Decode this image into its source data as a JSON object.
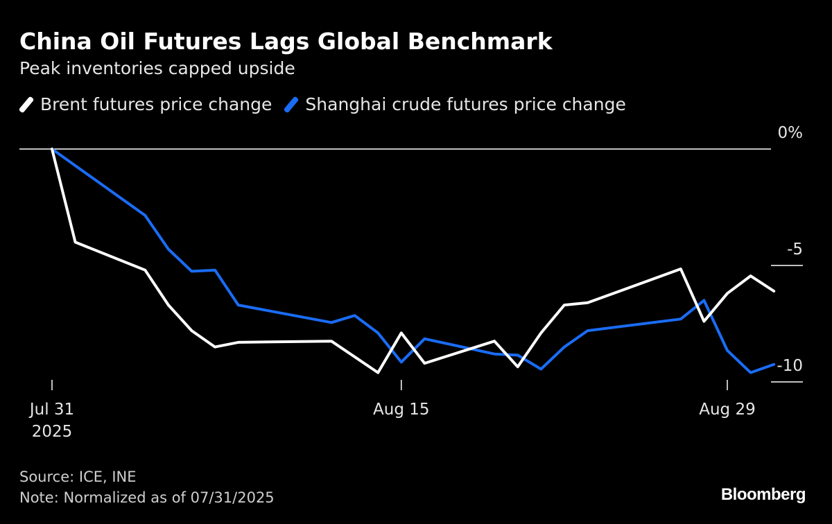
{
  "title": "China Oil Futures Lags Global Benchmark",
  "subtitle": "Peak inventories capped upside",
  "footer": {
    "source": "Source: ICE, INE",
    "note": "Note: Normalized as of 07/31/2025",
    "brand": "Bloomberg"
  },
  "chart_data": {
    "type": "line",
    "ylabel": "",
    "ylim": [
      -10.5,
      0.7
    ],
    "y_ticks": [
      {
        "value": 0,
        "label": "0%"
      },
      {
        "value": -5,
        "label": "-5"
      },
      {
        "value": -10,
        "label": "-10"
      }
    ],
    "x_ticks": [
      {
        "date": "2025-07-31",
        "lines": [
          "Jul 31",
          "2025"
        ]
      },
      {
        "date": "2025-08-15",
        "lines": [
          "Aug 15"
        ]
      },
      {
        "date": "2025-08-29",
        "lines": [
          "Aug 29"
        ]
      }
    ],
    "xlim": [
      "2025-07-31",
      "2025-08-29"
    ],
    "legend_position": "top-left",
    "grid": false,
    "series": [
      {
        "name": "Brent futures price change",
        "color": "#ffffff",
        "points": [
          [
            "2025-07-31",
            0.0
          ],
          [
            "2025-08-01",
            -4.0
          ],
          [
            "2025-08-04",
            -5.2
          ],
          [
            "2025-08-05",
            -6.7
          ],
          [
            "2025-08-06",
            -7.8
          ],
          [
            "2025-08-07",
            -8.5
          ],
          [
            "2025-08-08",
            -8.3
          ],
          [
            "2025-08-12",
            -8.25
          ],
          [
            "2025-08-14",
            -9.6
          ],
          [
            "2025-08-15",
            -7.9
          ],
          [
            "2025-08-16",
            -9.2
          ],
          [
            "2025-08-19",
            -8.25
          ],
          [
            "2025-08-20",
            -9.35
          ],
          [
            "2025-08-21",
            -7.9
          ],
          [
            "2025-08-22",
            -6.7
          ],
          [
            "2025-08-23",
            -6.6
          ],
          [
            "2025-08-27",
            -5.15
          ],
          [
            "2025-08-28",
            -7.4
          ],
          [
            "2025-08-29",
            -6.2
          ],
          [
            "2025-08-30",
            -5.45
          ],
          [
            "2025-08-31",
            -6.1
          ]
        ]
      },
      {
        "name": "Shanghai crude futures price change",
        "color": "#1a6cf5",
        "points": [
          [
            "2025-07-31",
            0.0
          ],
          [
            "2025-08-04",
            -2.85
          ],
          [
            "2025-08-05",
            -4.3
          ],
          [
            "2025-08-06",
            -5.25
          ],
          [
            "2025-08-07",
            -5.2
          ],
          [
            "2025-08-08",
            -6.7
          ],
          [
            "2025-08-12",
            -7.45
          ],
          [
            "2025-08-13",
            -7.15
          ],
          [
            "2025-08-14",
            -7.9
          ],
          [
            "2025-08-15",
            -9.15
          ],
          [
            "2025-08-16",
            -8.15
          ],
          [
            "2025-08-19",
            -8.8
          ],
          [
            "2025-08-20",
            -8.85
          ],
          [
            "2025-08-21",
            -9.45
          ],
          [
            "2025-08-22",
            -8.5
          ],
          [
            "2025-08-23",
            -7.8
          ],
          [
            "2025-08-27",
            -7.3
          ],
          [
            "2025-08-28",
            -6.5
          ],
          [
            "2025-08-29",
            -8.65
          ],
          [
            "2025-08-30",
            -9.6
          ],
          [
            "2025-08-31",
            -9.25
          ]
        ]
      }
    ]
  }
}
